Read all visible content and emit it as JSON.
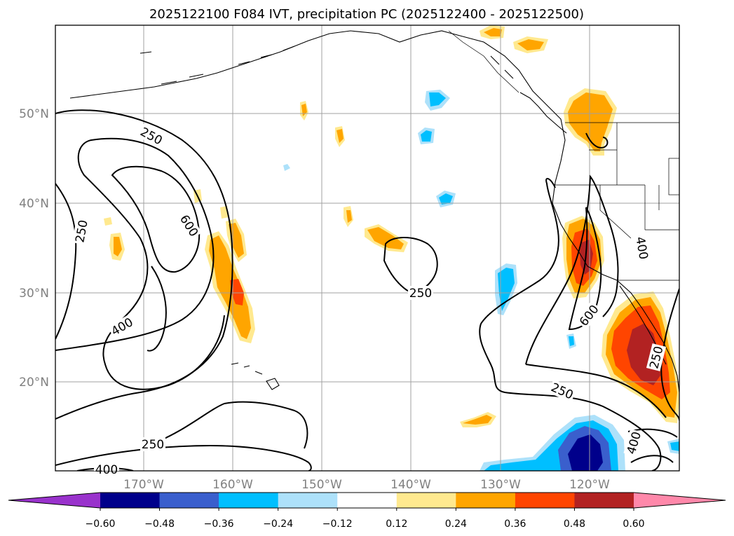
{
  "title": "2025122100 F084 IVT, precipitation PC (2025122400 - 2025122500)",
  "map": {
    "latitude_labels": [
      "50°N",
      "40°N",
      "30°N",
      "20°N"
    ],
    "longitude_labels": [
      "170°W",
      "160°W",
      "150°W",
      "140°W",
      "130°W",
      "120°W"
    ],
    "ivt_contour_labels": [
      {
        "id": "250-a",
        "text": "250"
      },
      {
        "id": "250-b",
        "text": "250"
      },
      {
        "id": "600-a",
        "text": "600"
      },
      {
        "id": "400-a",
        "text": "400"
      },
      {
        "id": "250-c",
        "text": "250"
      },
      {
        "id": "250-d",
        "text": "250"
      },
      {
        "id": "400-b",
        "text": "400"
      },
      {
        "id": "600-b",
        "text": "600"
      },
      {
        "id": "250-e",
        "text": "250"
      },
      {
        "id": "250-f",
        "text": "250"
      },
      {
        "id": "400-c",
        "text": "400"
      },
      {
        "id": "400-d",
        "text": "400"
      }
    ]
  },
  "colorbar": {
    "tick_labels": [
      "−0.60",
      "−0.48",
      "−0.36",
      "−0.24",
      "−0.12",
      "0.12",
      "0.24",
      "0.36",
      "0.48",
      "0.60"
    ],
    "colors": [
      "#9932CC",
      "#00008B",
      "#3A5FCD",
      "#00BFFF",
      "#ADE1FA",
      "#FFFFFF",
      "#FFE98F",
      "#FFA500",
      "#FF4500",
      "#B22222",
      "#FF88AA"
    ]
  }
}
